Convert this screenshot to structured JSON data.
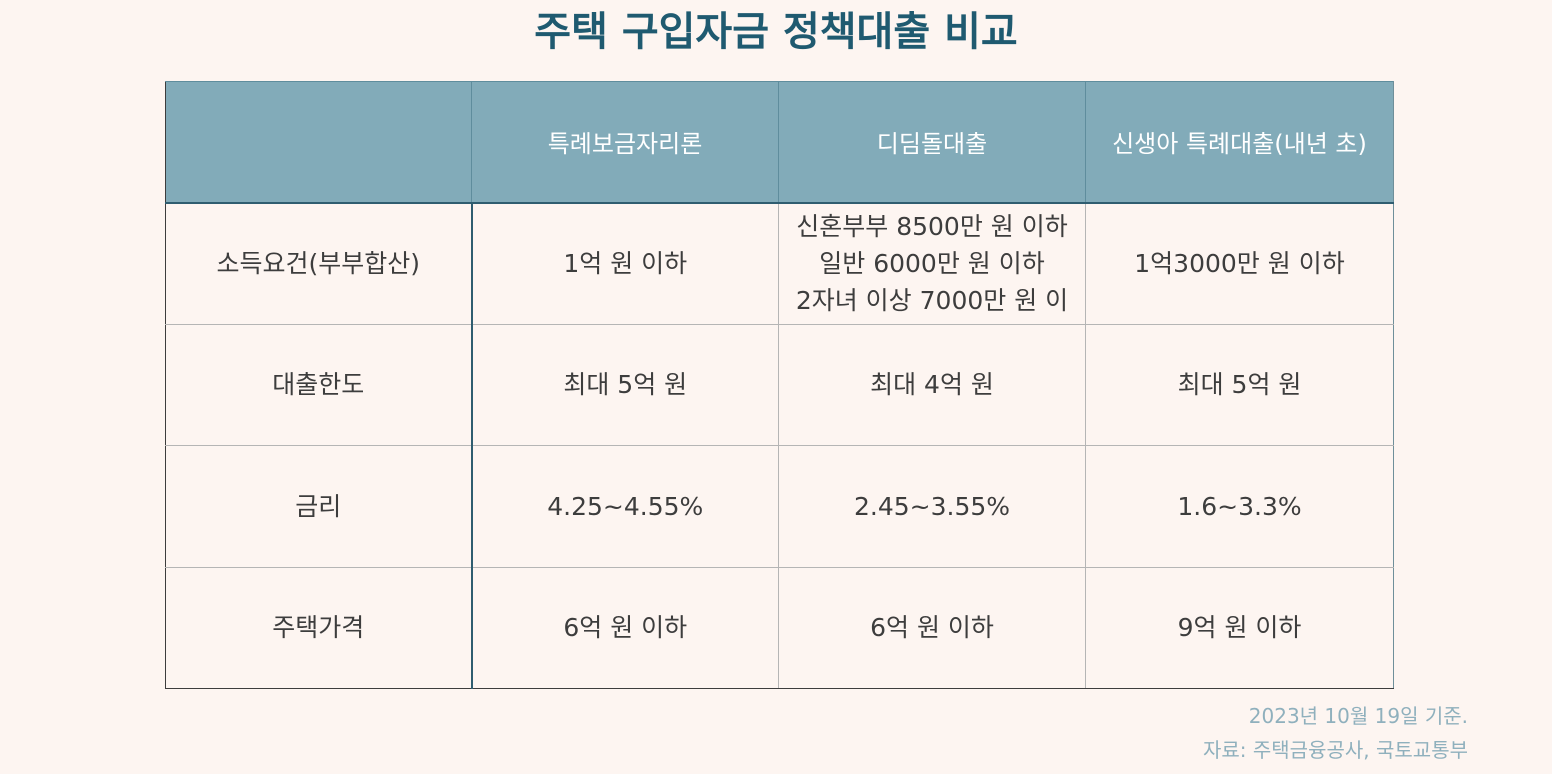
{
  "chart_data": {
    "type": "table",
    "title": "주택 구입자금 정책대출 비교",
    "columns": [
      "",
      "특례보금자리론",
      "디딤돌대출",
      "신생아 특례대출(내년 초)"
    ],
    "rows": [
      {
        "label": "소득요건(부부합산)",
        "cells": [
          [
            "1억 원 이하"
          ],
          [
            "신혼부부 8500만 원 이하",
            "일반 6000만 원 이하",
            "2자녀 이상 7000만 원 이"
          ],
          [
            "1억3000만 원 이하"
          ]
        ]
      },
      {
        "label": "대출한도",
        "cells": [
          [
            "최대 5억 원"
          ],
          [
            "최대 4억 원"
          ],
          [
            "최대 5억 원"
          ]
        ]
      },
      {
        "label": "금리",
        "cells": [
          [
            "4.25~4.55%"
          ],
          [
            "2.45~3.55%"
          ],
          [
            "1.6~3.3%"
          ]
        ]
      },
      {
        "label": "주택가격",
        "cells": [
          [
            "6억 원 이하"
          ],
          [
            "6억 원 이하"
          ],
          [
            "9억 원 이하"
          ]
        ]
      }
    ],
    "footnotes": [
      "2023년 10월 19일 기준.",
      "자료: 주택금융공사, 국토교통부"
    ]
  },
  "colors": {
    "background": "#fdf5f1",
    "title": "#1f5a70",
    "header_bg": "#82abb9",
    "header_text": "#ffffff",
    "footnote": "#8fb0bd"
  }
}
